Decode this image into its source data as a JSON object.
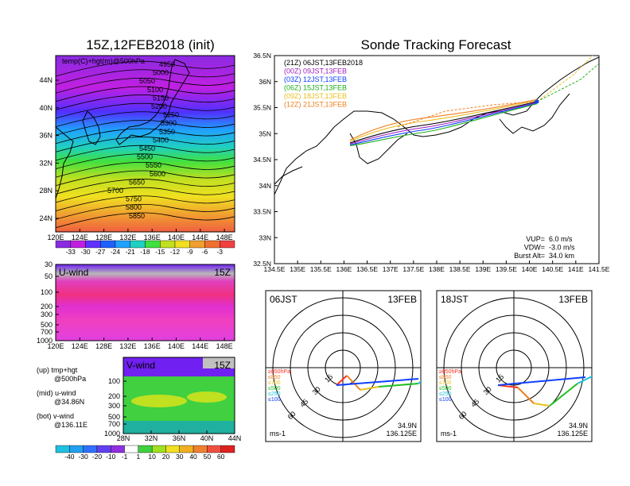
{
  "left_title": "15Z,12FEB2018 (init)",
  "right_title": "Sonde Tracking Forecast",
  "top_map": {
    "panel_label": "temp(C)+hgt(m)@500hPa",
    "lat_ticks": [
      "44N",
      "40N",
      "36N",
      "32N",
      "28N",
      "24N"
    ],
    "lon_ticks": [
      "120E",
      "124E",
      "128E",
      "132E",
      "136E",
      "140E",
      "144E",
      "148E"
    ],
    "contours": [
      "4950",
      "5000",
      "5050",
      "5100",
      "5150",
      "5200",
      "5250",
      "5300",
      "5350",
      "5400",
      "5450",
      "5500",
      "5550",
      "5600",
      "5650",
      "5700",
      "5750",
      "5800",
      "5850"
    ]
  },
  "temp_colorbar": [
    "-33",
    "-30",
    "-27",
    "-24",
    "-21",
    "-18",
    "-15",
    "-12",
    "-9",
    "-6",
    "-3"
  ],
  "uwind_panel": {
    "title": "U-wind",
    "time": "15Z",
    "y_ticks": [
      "30",
      "50",
      "100",
      "200",
      "300",
      "500",
      "700",
      "1000"
    ],
    "x_ticks": [
      "120E",
      "124E",
      "128E",
      "132E",
      "136E",
      "140E",
      "144E",
      "148E"
    ]
  },
  "vwind_panel": {
    "title": "V-wind",
    "time": "15Z",
    "y_ticks": [
      "100",
      "200",
      "300",
      "500",
      "700",
      "1000"
    ],
    "x_ticks": [
      "28N",
      "32N",
      "36N",
      "40N",
      "44N"
    ]
  },
  "captions": [
    {
      "a": "(up) tmp+hgt",
      "b": "@500hPa"
    },
    {
      "a": "(mid) u-wind",
      "b": "@34.86N"
    },
    {
      "a": "(bot) v-wind",
      "b": "@136.11E"
    }
  ],
  "wind_colorbar": [
    "-40",
    "-30",
    "-20",
    "-10",
    "-1",
    "1",
    "10",
    "20",
    "30",
    "40",
    "50",
    "60"
  ],
  "track_map": {
    "lat_ticks": [
      "36.5N",
      "36N",
      "35.5N",
      "35N",
      "34.5N",
      "34N",
      "33.5N",
      "33N",
      "32.5N"
    ],
    "lon_ticks": [
      "134.5E",
      "135E",
      "135.5E",
      "136E",
      "136.5E",
      "137E",
      "137.5E",
      "138E",
      "138.5E",
      "139E",
      "139.5E",
      "140E",
      "140.5E",
      "141E",
      "141.5E"
    ],
    "legend": [
      {
        "label": "(21Z)  06JST,13FEB2018",
        "color": "#000000"
      },
      {
        "label": "(00Z)  09JST,13FEB",
        "color": "#a020c0"
      },
      {
        "label": "(03Z)  12JST,13FEB",
        "color": "#1040ff"
      },
      {
        "label": "(06Z)  15JST,13FEB",
        "color": "#20b020"
      },
      {
        "label": "(09Z)  18JST,13FEB",
        "color": "#e8c020"
      },
      {
        "label": "(12Z)  21JST,13FEB",
        "color": "#f08020"
      }
    ],
    "info": [
      {
        "k": "VUP=",
        "v": "6.0  m/s"
      },
      {
        "k": "VDW=",
        "v": "-3.0  m/s"
      },
      {
        "k": "Burst Alt=",
        "v": "34.0  km"
      }
    ]
  },
  "polar_left": {
    "time": "06JST",
    "date": "13FEB",
    "rings": [
      "15",
      "30",
      "45",
      "60"
    ],
    "levels": [
      "≥850hPa",
      "≤850",
      "≤700",
      "≤500",
      "≤250",
      "≤100"
    ],
    "lat": "34.9N",
    "lon": "136.125E",
    "unit": "ms-1"
  },
  "polar_right": {
    "time": "18JST",
    "date": "13FEB",
    "rings": [
      "15",
      "30",
      "45",
      "60"
    ],
    "levels": [
      "≥850hPa",
      "≤850",
      "≤700",
      "≤500",
      "≤250",
      "≤100"
    ],
    "lat": "34.9N",
    "lon": "136.125E",
    "unit": "ms-1"
  },
  "level_colors": [
    "#ff3020",
    "#f08020",
    "#e8c020",
    "#20c020",
    "#20c0e0",
    "#1040ff"
  ]
}
